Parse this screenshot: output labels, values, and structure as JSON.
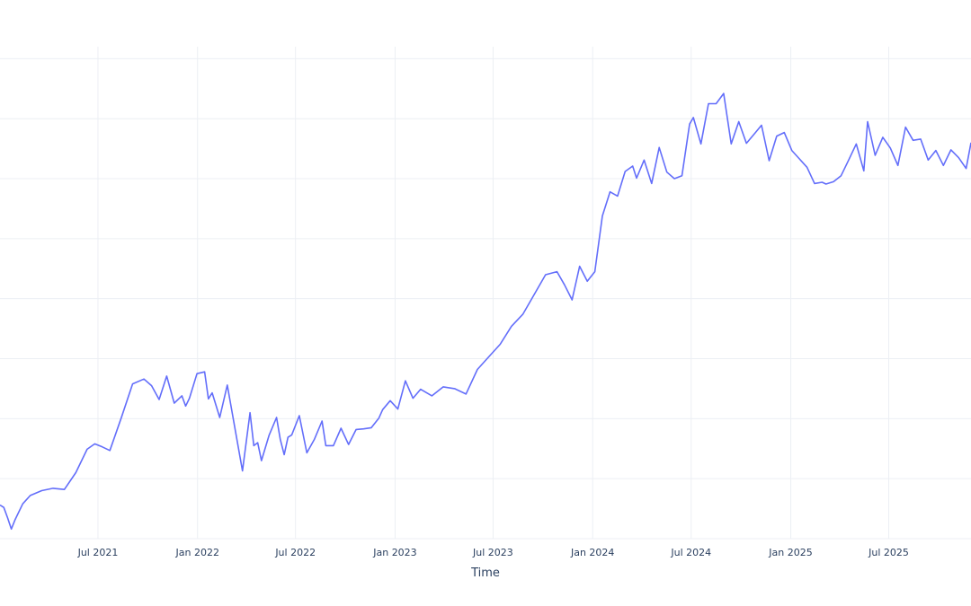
{
  "chart_data": {
    "type": "line",
    "title": "",
    "xlabel": "Time",
    "ylabel": "",
    "x_tick_labels": [
      "Jul 2021",
      "Jan 2022",
      "Jul 2022",
      "Jan 2023",
      "Jul 2023",
      "Jan 2024",
      "Jul 2024",
      "Jan 2025",
      "Jul 2025"
    ],
    "x_tick_dates": [
      "2021-07-01",
      "2022-01-01",
      "2022-07-01",
      "2023-01-01",
      "2023-07-01",
      "2024-01-01",
      "2024-07-01",
      "2025-01-01",
      "2025-07-01"
    ],
    "xlim": [
      "2021-01-01",
      "2025-11-30"
    ],
    "ylim": [
      0.0,
      8.2
    ],
    "y_gridlines": [
      0,
      1,
      2,
      3,
      4,
      5,
      6,
      7,
      8
    ],
    "grid": true,
    "legend": "none",
    "line_color": "#636efa",
    "series": [
      {
        "x": [
          "2021-01-01",
          "2021-01-08",
          "2021-01-15",
          "2021-01-22",
          "2021-01-29",
          "2021-02-12",
          "2021-02-26",
          "2021-03-19",
          "2021-04-09",
          "2021-04-30",
          "2021-05-21",
          "2021-06-11",
          "2021-06-25",
          "2021-07-09",
          "2021-07-23",
          "2021-08-13",
          "2021-09-03",
          "2021-09-24",
          "2021-10-08",
          "2021-10-22",
          "2021-11-05",
          "2021-11-19",
          "2021-12-03",
          "2021-12-10",
          "2021-12-17",
          "2021-12-31",
          "2022-01-14",
          "2022-01-21",
          "2022-01-28",
          "2022-02-11",
          "2022-02-25",
          "2022-03-11",
          "2022-03-25",
          "2022-04-08",
          "2022-04-15",
          "2022-04-22",
          "2022-04-29",
          "2022-05-13",
          "2022-05-27",
          "2022-06-03",
          "2022-06-10",
          "2022-06-17",
          "2022-06-24",
          "2022-07-08",
          "2022-07-22",
          "2022-08-05",
          "2022-08-19",
          "2022-08-26",
          "2022-09-09",
          "2022-09-23",
          "2022-10-07",
          "2022-10-21",
          "2022-11-04",
          "2022-11-18",
          "2022-12-02",
          "2022-12-09",
          "2022-12-23",
          "2023-01-06",
          "2023-01-20",
          "2023-02-03",
          "2023-02-17",
          "2023-03-10",
          "2023-03-31",
          "2023-04-21",
          "2023-05-12",
          "2023-06-02",
          "2023-06-23",
          "2023-07-14",
          "2023-08-04",
          "2023-08-25",
          "2023-09-15",
          "2023-10-06",
          "2023-10-27",
          "2023-11-10",
          "2023-11-24",
          "2023-12-08",
          "2023-12-22",
          "2024-01-05",
          "2024-01-19",
          "2024-02-02",
          "2024-02-16",
          "2024-03-01",
          "2024-03-15",
          "2024-03-22",
          "2024-04-05",
          "2024-04-19",
          "2024-05-03",
          "2024-05-17",
          "2024-05-31",
          "2024-06-14",
          "2024-06-28",
          "2024-07-05",
          "2024-07-19",
          "2024-08-02",
          "2024-08-16",
          "2024-08-30",
          "2024-09-13",
          "2024-09-27",
          "2024-10-11",
          "2024-10-25",
          "2024-11-08",
          "2024-11-22",
          "2024-12-06",
          "2024-12-20",
          "2025-01-03",
          "2025-01-17",
          "2025-01-31",
          "2025-02-14",
          "2025-02-28",
          "2025-03-07",
          "2025-03-21",
          "2025-04-04",
          "2025-04-18",
          "2025-05-02",
          "2025-05-16",
          "2025-05-23",
          "2025-06-06",
          "2025-06-20",
          "2025-07-04",
          "2025-07-18",
          "2025-08-01",
          "2025-08-15",
          "2025-08-29",
          "2025-09-12",
          "2025-09-26",
          "2025-10-10",
          "2025-10-24",
          "2025-11-07",
          "2025-11-21",
          "2025-11-30"
        ],
        "y": [
          0.56,
          0.52,
          0.35,
          0.16,
          0.32,
          0.58,
          0.72,
          0.8,
          0.84,
          0.82,
          1.1,
          1.49,
          1.58,
          1.53,
          1.47,
          2.01,
          2.58,
          2.66,
          2.55,
          2.32,
          2.71,
          2.26,
          2.38,
          2.21,
          2.34,
          2.75,
          2.78,
          2.33,
          2.43,
          2.02,
          2.56,
          1.84,
          1.13,
          2.1,
          1.55,
          1.6,
          1.3,
          1.72,
          2.02,
          1.65,
          1.4,
          1.69,
          1.73,
          2.05,
          1.43,
          1.66,
          1.96,
          1.55,
          1.55,
          1.84,
          1.57,
          1.82,
          1.83,
          1.85,
          2.01,
          2.15,
          2.3,
          2.16,
          2.63,
          2.34,
          2.49,
          2.38,
          2.53,
          2.5,
          2.41,
          2.82,
          3.03,
          3.24,
          3.54,
          3.74,
          4.07,
          4.4,
          4.45,
          4.23,
          3.98,
          4.54,
          4.29,
          4.45,
          5.38,
          5.78,
          5.71,
          6.12,
          6.21,
          6.01,
          6.31,
          5.92,
          6.52,
          6.11,
          6.0,
          6.05,
          6.91,
          7.02,
          6.58,
          7.25,
          7.25,
          7.42,
          6.58,
          6.95,
          6.59,
          6.74,
          6.89,
          6.3,
          6.71,
          6.77,
          6.47,
          6.33,
          6.19,
          5.92,
          5.94,
          5.91,
          5.95,
          6.05,
          6.31,
          6.58,
          6.13,
          6.95,
          6.39,
          6.69,
          6.51,
          6.22,
          6.86,
          6.64,
          6.66,
          6.31,
          6.47,
          6.22,
          6.48,
          6.35,
          6.17,
          6.6
        ]
      }
    ]
  }
}
